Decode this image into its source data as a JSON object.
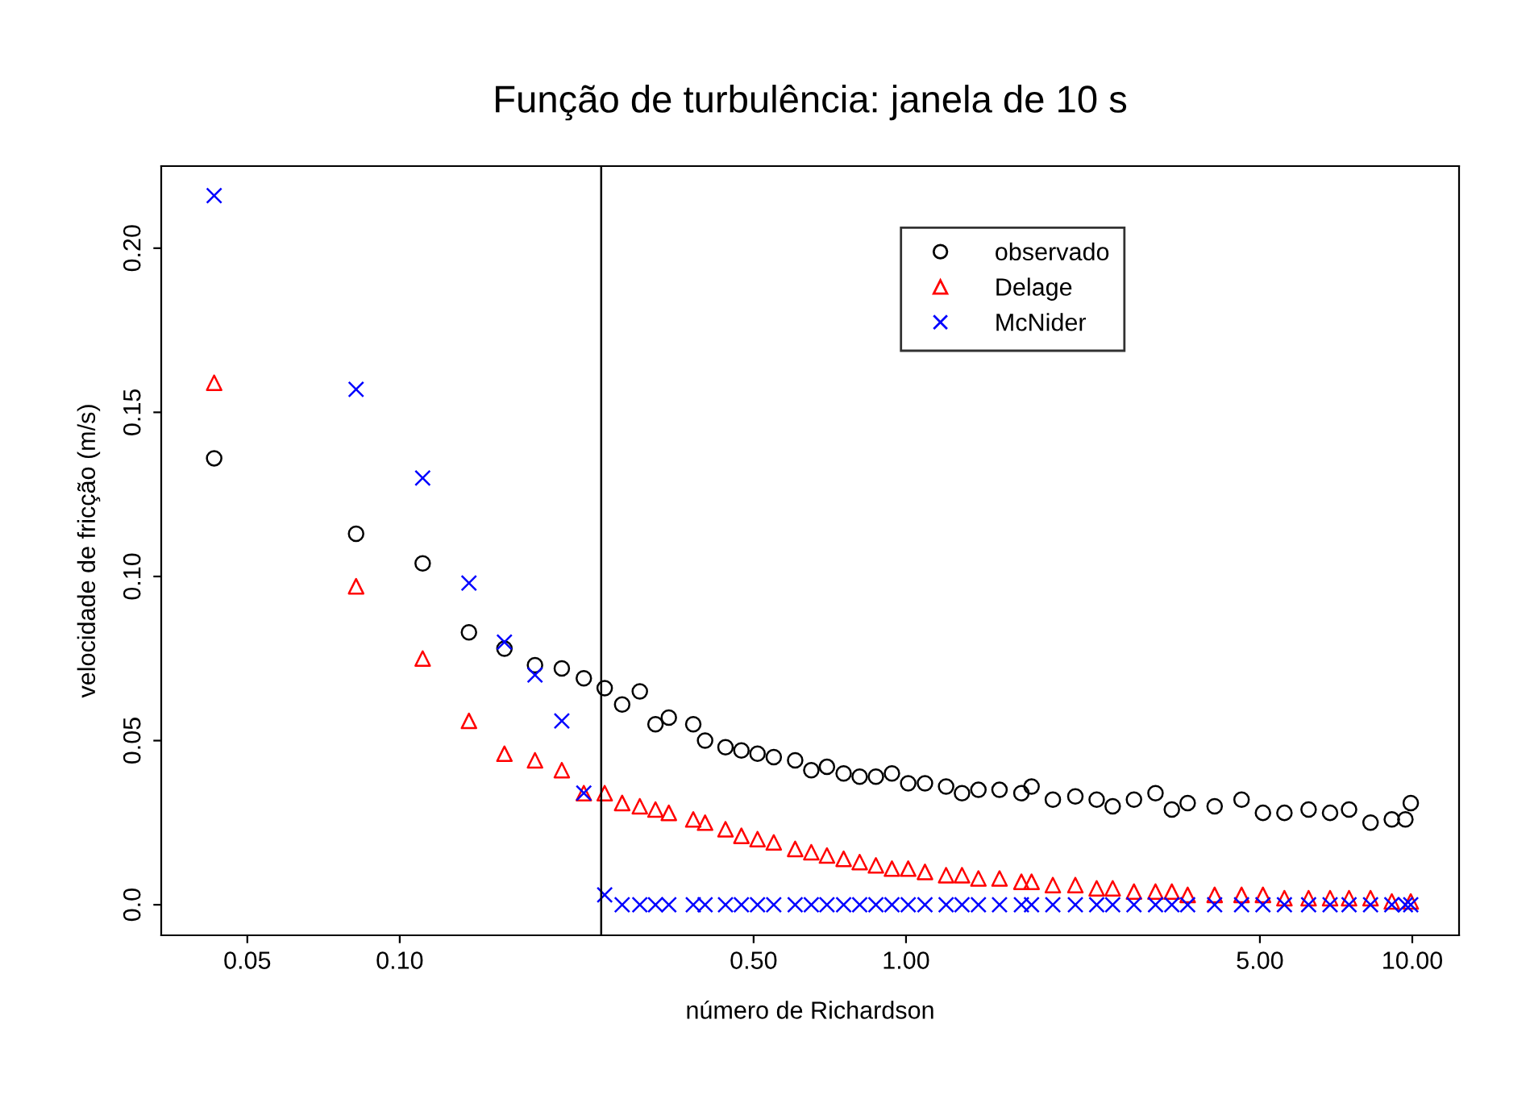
{
  "chart_data": {
    "type": "scatter",
    "title": "Função de turbulência: janela de 10 s",
    "xlabel": "número de Richardson",
    "ylabel": "velocidade de fricção (m/s)",
    "log": "x",
    "xlim": [
      0.0338,
      12.37
    ],
    "ylim": [
      -0.0093,
      0.225
    ],
    "xticks": [
      {
        "value": 0.05,
        "label": "0.05"
      },
      {
        "value": 0.1,
        "label": "0.10"
      },
      {
        "value": 0.5,
        "label": "0.50"
      },
      {
        "value": 1,
        "label": "1.00"
      },
      {
        "value": 5,
        "label": "5.00"
      },
      {
        "value": 10,
        "label": "10.00"
      }
    ],
    "yticks": [
      {
        "value": 0,
        "label": "0.0"
      },
      0.05,
      {
        "value": 0.1,
        "label": "0.10"
      },
      0.15,
      {
        "value": 0.2,
        "label": "0.20"
      }
    ],
    "grid": false,
    "legend": "top right",
    "ref_lines": [
      {
        "axis": "x",
        "value": 0.25,
        "color": "#000000",
        "line_style": "solid"
      }
    ],
    "x": [
      0.043,
      0.082,
      0.111,
      0.137,
      0.161,
      0.185,
      0.209,
      0.231,
      0.254,
      0.275,
      0.298,
      0.32,
      0.34,
      0.38,
      0.401,
      0.44,
      0.473,
      0.509,
      0.548,
      0.604,
      0.65,
      0.698,
      0.753,
      0.81,
      0.872,
      0.938,
      1.01,
      1.09,
      1.2,
      1.29,
      1.39,
      1.53,
      1.69,
      1.77,
      1.95,
      2.16,
      2.38,
      2.56,
      2.82,
      3.11,
      3.35,
      3.6,
      4.07,
      4.6,
      5.07,
      5.59,
      6.24,
      6.88,
      7.5,
      8.27,
      9.11,
      9.69,
      9.93
    ],
    "series": [
      {
        "name": "observado",
        "color": "#000000",
        "marker": "circle",
        "values": [
          0.136,
          0.113,
          0.104,
          0.083,
          0.078,
          0.073,
          0.072,
          0.069,
          0.066,
          0.061,
          0.065,
          0.055,
          0.057,
          0.055,
          0.05,
          0.048,
          0.047,
          0.046,
          0.045,
          0.044,
          0.041,
          0.042,
          0.04,
          0.039,
          0.039,
          0.04,
          0.037,
          0.037,
          0.036,
          0.034,
          0.035,
          0.035,
          0.034,
          0.036,
          0.032,
          0.033,
          0.032,
          0.03,
          0.032,
          0.034,
          0.029,
          0.031,
          0.03,
          0.032,
          0.028,
          0.028,
          0.029,
          0.028,
          0.029,
          0.025,
          0.026,
          0.026,
          0.031
        ]
      },
      {
        "name": "Delage",
        "color": "#ff0000",
        "marker": "triangle",
        "values": [
          0.159,
          0.097,
          0.075,
          0.056,
          0.046,
          0.044,
          0.041,
          0.034,
          0.034,
          0.031,
          0.03,
          0.029,
          0.028,
          0.026,
          0.025,
          0.023,
          0.021,
          0.02,
          0.019,
          0.017,
          0.016,
          0.015,
          0.014,
          0.013,
          0.012,
          0.011,
          0.011,
          0.01,
          0.009,
          0.009,
          0.008,
          0.008,
          0.007,
          0.007,
          0.006,
          0.006,
          0.005,
          0.005,
          0.004,
          0.004,
          0.004,
          0.003,
          0.003,
          0.003,
          0.003,
          0.002,
          0.002,
          0.002,
          0.002,
          0.002,
          0.001,
          null,
          0.001
        ]
      },
      {
        "name": "McNider",
        "color": "#0000ff",
        "marker": "cross",
        "values": [
          0.216,
          0.157,
          0.13,
          0.098,
          0.08,
          0.07,
          0.056,
          0.034,
          0.003,
          0.0,
          0.0,
          0.0,
          0.0,
          0.0,
          0.0,
          0.0,
          0.0,
          0.0,
          0.0,
          0.0,
          0.0,
          0.0,
          0.0,
          0.0,
          0.0,
          0.0,
          0.0,
          0.0,
          0.0,
          0.0,
          0.0,
          0.0,
          0.0,
          0.0,
          0.0,
          0.0,
          0.0,
          0.0,
          0.0,
          0.0,
          0.0,
          0.0,
          0.0,
          0.0,
          0.0,
          0.0,
          0.0,
          0.0,
          0.0,
          0.0,
          0.0,
          0.0,
          0.0
        ]
      }
    ]
  }
}
